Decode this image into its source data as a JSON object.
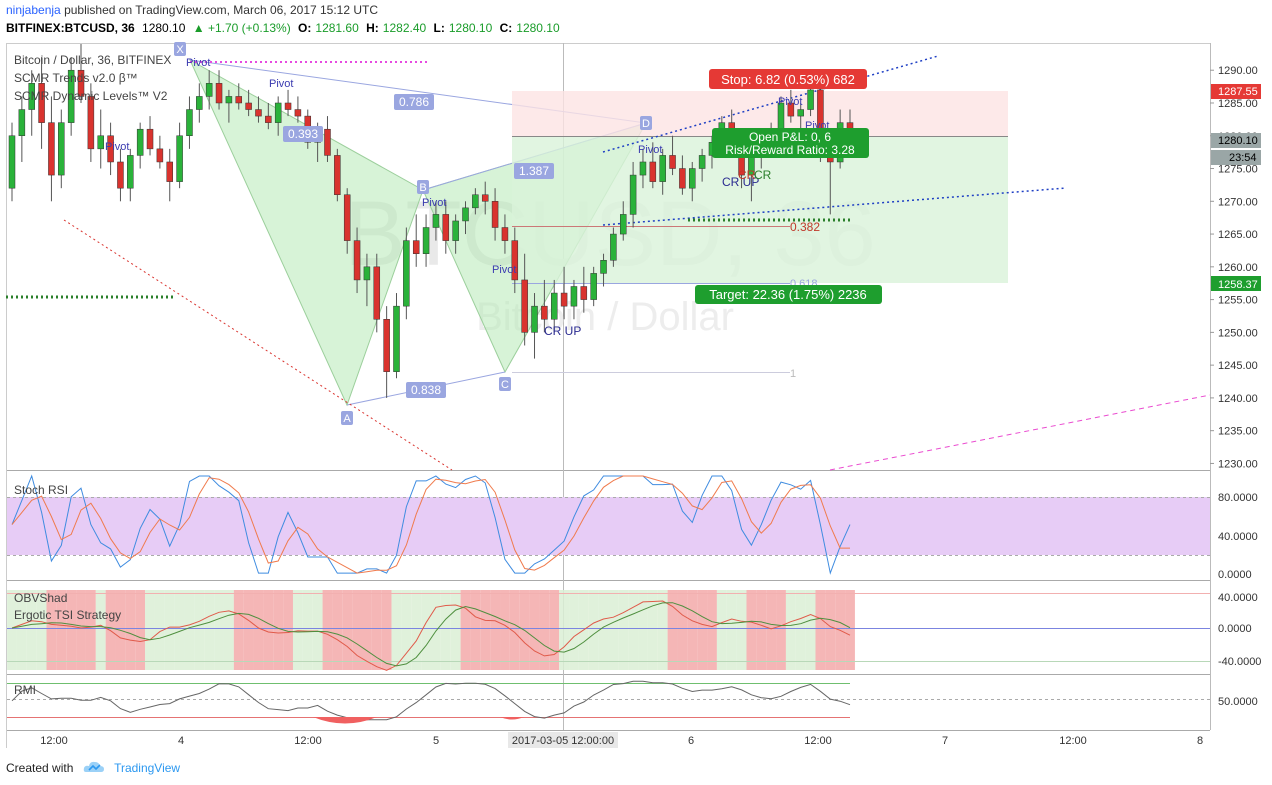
{
  "header": {
    "user": "ninjabenja",
    "published": "published on TradingView.com, March 06, 2017 15:12 UTC",
    "symbol": "BITFINEX:BTCUSD, 36",
    "last": "1280.10",
    "change": "▲ +1.70 (+0.13%)",
    "o_label": "O:",
    "o": "1281.60",
    "h_label": "H:",
    "h": "1282.40",
    "l_label": "L:",
    "l": "1280.10",
    "c_label": "C:",
    "c": "1280.10"
  },
  "legend": {
    "title": "Bitcoin / Dollar, 36, BITFINEX",
    "ind1": "SCMR Trends v2.0 β™",
    "ind2": "SCMR Dynamic Levels™ V2"
  },
  "watermark": {
    "main": "BTCUSD, 36",
    "sub": "Bitcoin / Dollar"
  },
  "colors": {
    "up": "#2ab23a",
    "down": "#d9332e",
    "bear_fill": "#4a90e2",
    "harmonic": "#b7eab7",
    "fib_line": "#9aa6e0",
    "stop_box": "#fde3e3",
    "target_box": "#d9f2d9",
    "stoch_bg": "#e7ccf6",
    "stoch_k": "#3f8ce0",
    "stoch_d": "#f07b4d",
    "price_tag": "#d9332e",
    "target_tag": "#2ab23a"
  },
  "chart_data": [
    {
      "type": "candlestick",
      "title": "Bitcoin / Dollar, 36, BITFINEX",
      "x_ticks": [
        "12:00",
        "4",
        "12:00",
        "5",
        "2017-03-05 12:00:00",
        "6",
        "12:00",
        "7",
        "12:00",
        "8"
      ],
      "y_ticks": [
        "1290.00",
        "1285.00",
        "1280.00",
        "1275.00",
        "1270.00",
        "1265.00",
        "1260.00",
        "1255.00",
        "1250.00",
        "1245.00",
        "1240.00",
        "1235.00",
        "1230.00"
      ],
      "ylim": [
        1229,
        1294
      ],
      "price_labels": {
        "high": "1287.55",
        "last": "1280.10",
        "timer": "23:54",
        "low": "1258.37"
      },
      "harmonic_points": [
        "X",
        "A",
        "B",
        "C",
        "D"
      ],
      "ratios": [
        "0.786",
        "0.393",
        "1.387",
        "0.838"
      ],
      "fib_levels": [
        "0.382",
        "0.618",
        "1"
      ],
      "pivots": [
        "Pivot",
        "Pivot",
        "Pivot",
        "Pivot",
        "Pivot",
        "Pivot",
        "Pivot",
        "Pivot"
      ],
      "signals": [
        "CR UP",
        "CR UP",
        "CR",
        "CR"
      ],
      "position": {
        "stop": "Stop: 6.82 (0.53%) 682",
        "open": "Open P&L: 0, 6",
        "rr": "Risk/Reward Ratio: 3.28",
        "target": "Target: 22.36 (1.75%) 2236"
      },
      "candles": [
        [
          1272,
          1282,
          1270,
          1280
        ],
        [
          1280,
          1286,
          1276,
          1284
        ],
        [
          1284,
          1290,
          1280,
          1288
        ],
        [
          1288,
          1292,
          1278,
          1282
        ],
        [
          1282,
          1286,
          1270,
          1274
        ],
        [
          1274,
          1284,
          1272,
          1282
        ],
        [
          1282,
          1292,
          1280,
          1290
        ],
        [
          1290,
          1294,
          1285,
          1286
        ],
        [
          1286,
          1288,
          1276,
          1278
        ],
        [
          1278,
          1284,
          1275,
          1280
        ],
        [
          1280,
          1282,
          1274,
          1276
        ],
        [
          1276,
          1278,
          1270,
          1272
        ],
        [
          1272,
          1278,
          1270,
          1277
        ],
        [
          1277,
          1282,
          1275,
          1281
        ],
        [
          1281,
          1283,
          1277,
          1278
        ],
        [
          1278,
          1280,
          1275,
          1276
        ],
        [
          1276,
          1278,
          1270,
          1273
        ],
        [
          1273,
          1282,
          1272,
          1280
        ],
        [
          1280,
          1286,
          1278,
          1284
        ],
        [
          1284,
          1288,
          1282,
          1286
        ],
        [
          1286,
          1290,
          1284,
          1288
        ],
        [
          1288,
          1290,
          1284,
          1285
        ],
        [
          1285,
          1287,
          1282,
          1286
        ],
        [
          1286,
          1288,
          1284,
          1285
        ],
        [
          1285,
          1287,
          1283,
          1284
        ],
        [
          1284,
          1286,
          1282,
          1283
        ],
        [
          1283,
          1285,
          1281,
          1282
        ],
        [
          1282,
          1286,
          1280,
          1285
        ],
        [
          1285,
          1287,
          1283,
          1284
        ],
        [
          1284,
          1286,
          1282,
          1283
        ],
        [
          1283,
          1284,
          1278,
          1279
        ],
        [
          1279,
          1282,
          1276,
          1281
        ],
        [
          1281,
          1283,
          1276,
          1277
        ],
        [
          1277,
          1278,
          1270,
          1271
        ],
        [
          1271,
          1272,
          1262,
          1264
        ],
        [
          1264,
          1266,
          1256,
          1258
        ],
        [
          1258,
          1262,
          1254,
          1260
        ],
        [
          1260,
          1262,
          1250,
          1252
        ],
        [
          1252,
          1254,
          1240,
          1244
        ],
        [
          1244,
          1256,
          1243,
          1254
        ],
        [
          1254,
          1266,
          1252,
          1264
        ],
        [
          1264,
          1268,
          1260,
          1262
        ],
        [
          1262,
          1268,
          1260,
          1266
        ],
        [
          1266,
          1270,
          1264,
          1268
        ],
        [
          1268,
          1270,
          1262,
          1264
        ],
        [
          1264,
          1268,
          1262,
          1267
        ],
        [
          1267,
          1270,
          1265,
          1269
        ],
        [
          1269,
          1272,
          1268,
          1271
        ],
        [
          1271,
          1273,
          1268,
          1270
        ],
        [
          1270,
          1272,
          1264,
          1266
        ],
        [
          1266,
          1268,
          1262,
          1264
        ],
        [
          1264,
          1266,
          1256,
          1258
        ],
        [
          1258,
          1262,
          1248,
          1250
        ],
        [
          1250,
          1256,
          1246,
          1254
        ],
        [
          1254,
          1258,
          1250,
          1252
        ],
        [
          1252,
          1258,
          1250,
          1256
        ],
        [
          1256,
          1260,
          1252,
          1254
        ],
        [
          1254,
          1258,
          1252,
          1257
        ],
        [
          1257,
          1260,
          1253,
          1255
        ],
        [
          1255,
          1260,
          1254,
          1259
        ],
        [
          1259,
          1262,
          1257,
          1261
        ],
        [
          1261,
          1266,
          1260,
          1265
        ],
        [
          1265,
          1270,
          1264,
          1268
        ],
        [
          1268,
          1276,
          1266,
          1274
        ],
        [
          1274,
          1278,
          1272,
          1276
        ],
        [
          1276,
          1279,
          1272,
          1273
        ],
        [
          1273,
          1278,
          1271,
          1277
        ],
        [
          1277,
          1280,
          1274,
          1275
        ],
        [
          1275,
          1277,
          1271,
          1272
        ],
        [
          1272,
          1276,
          1270,
          1275
        ],
        [
          1275,
          1278,
          1273,
          1277
        ],
        [
          1277,
          1280,
          1275,
          1279
        ],
        [
          1279,
          1283,
          1277,
          1282
        ],
        [
          1282,
          1284,
          1278,
          1279
        ],
        [
          1279,
          1281,
          1272,
          1274
        ],
        [
          1274,
          1278,
          1270,
          1277
        ],
        [
          1277,
          1280,
          1275,
          1279
        ],
        [
          1279,
          1282,
          1277,
          1281
        ],
        [
          1281,
          1286,
          1280,
          1285
        ],
        [
          1285,
          1287,
          1282,
          1283
        ],
        [
          1283,
          1285,
          1281,
          1284
        ],
        [
          1284,
          1288,
          1283,
          1287
        ],
        [
          1287,
          1288,
          1276,
          1278
        ],
        [
          1278,
          1280,
          1268,
          1276
        ],
        [
          1276,
          1284,
          1275,
          1282
        ],
        [
          1282,
          1284,
          1280,
          1281
        ]
      ]
    },
    {
      "type": "line",
      "title": "Stoch RSI",
      "y_ticks": [
        "80.0000",
        "40.0000",
        "0.0000"
      ],
      "ylim": [
        -5,
        100
      ]
    },
    {
      "type": "area",
      "title": "OBVShad",
      "subtitle": "Ergotic TSI Strategy",
      "y_ticks": [
        "40.0000",
        "0.0000",
        "-40.0000"
      ],
      "ylim": [
        -55,
        55
      ]
    },
    {
      "type": "line",
      "title": "RMI",
      "y_ticks": [
        "50.0000"
      ],
      "ylim": [
        20,
        80
      ]
    }
  ],
  "footer": {
    "created": "Created with",
    "brand": "TradingView"
  }
}
